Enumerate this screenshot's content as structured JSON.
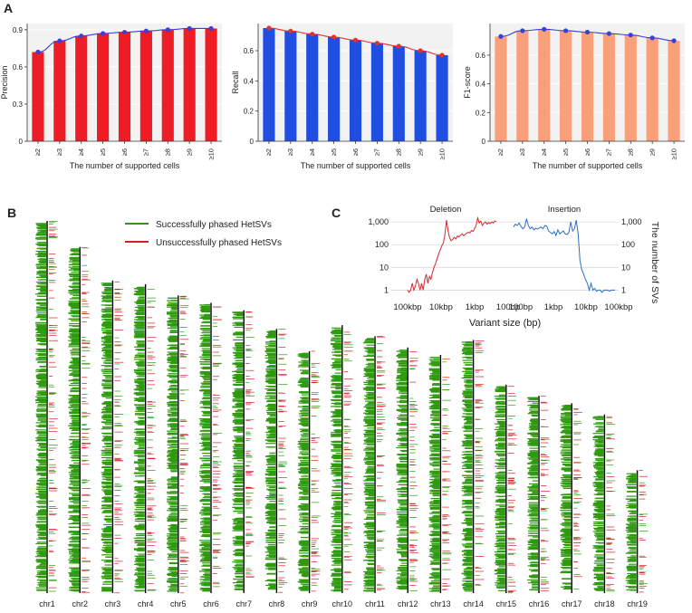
{
  "panels": {
    "A": "A",
    "B": "B",
    "C": "C"
  },
  "chart_data": [
    {
      "panel": "A",
      "type": "bar",
      "ylabel": "Precision",
      "xlabel": "The number of supported cells",
      "categories": [
        "≥2",
        "≥3",
        "≥4",
        "≥5",
        "≥6",
        "≥7",
        "≥8",
        "≥9",
        "≥10"
      ],
      "values": [
        0.72,
        0.81,
        0.85,
        0.87,
        0.88,
        0.89,
        0.9,
        0.91,
        0.91
      ],
      "ylim": [
        0,
        0.95
      ],
      "yticks": [
        0,
        0.3,
        0.6,
        0.9
      ],
      "ytick_labels": [
        "0",
        "0.3",
        "0.6",
        "0.9"
      ],
      "bar_color": "#ee1c25",
      "line_color": "#3a3fd6",
      "point_color": "#3a3fd6"
    },
    {
      "panel": "A",
      "type": "bar",
      "ylabel": "Recall",
      "xlabel": "The number of supported cells",
      "categories": [
        "≥2",
        "≥3",
        "≥4",
        "≥5",
        "≥6",
        "≥7",
        "≥8",
        "≥9",
        "≥10"
      ],
      "values": [
        0.75,
        0.73,
        0.71,
        0.69,
        0.67,
        0.65,
        0.63,
        0.6,
        0.57
      ],
      "ylim": [
        0,
        0.78
      ],
      "yticks": [
        0,
        0.2,
        0.4,
        0.6
      ],
      "ytick_labels": [
        "0",
        "0.2",
        "0.4",
        "0.6"
      ],
      "bar_color": "#1f4ee0",
      "line_color": "#e8302a",
      "point_color": "#e8302a"
    },
    {
      "panel": "A",
      "type": "bar",
      "ylabel": "F1-score",
      "xlabel": "The number of supported cells",
      "categories": [
        "≥2",
        "≥3",
        "≥4",
        "≥5",
        "≥6",
        "≥7",
        "≥8",
        "≥9",
        "≥10"
      ],
      "values": [
        0.73,
        0.77,
        0.78,
        0.77,
        0.76,
        0.75,
        0.74,
        0.72,
        0.7
      ],
      "ylim": [
        0,
        0.82
      ],
      "yticks": [
        0,
        0.2,
        0.4,
        0.6
      ],
      "ytick_labels": [
        "0",
        "0.2",
        "0.4",
        "0.6"
      ],
      "bar_color": "#f9a07a",
      "line_color": "#3a3fd6",
      "point_color": "#3a3fd6"
    },
    {
      "panel": "C",
      "type": "line",
      "title_left": "Deletion",
      "title_right": "Insertion",
      "xlabel": "Variant size (bp)",
      "ylabel": "The number of SVs",
      "yscale": "log",
      "ylim": [
        0.5,
        1600
      ],
      "yticks": [
        1,
        10,
        100,
        1000
      ],
      "ytick_labels": [
        "1",
        "10",
        "100",
        "1,000"
      ],
      "deletion_xtick_labels": [
        "100kbp",
        "10kbp",
        "1kbp",
        "100bp"
      ],
      "insertion_xtick_labels": [
        "100bp",
        "1kbp",
        "10kbp",
        "100kbp"
      ],
      "deletion_color": "#d6282c",
      "insertion_color": "#2f6fc0",
      "deletion_series": [
        1,
        0.8,
        1,
        2,
        1,
        1.5,
        3,
        2,
        1,
        2,
        1,
        3,
        5,
        2,
        4,
        3,
        6,
        10,
        15,
        25,
        40,
        60,
        90,
        120,
        300,
        1200,
        400,
        200,
        150,
        170,
        210,
        180,
        240,
        220,
        260,
        300,
        250,
        280,
        320,
        350,
        330,
        420,
        380,
        500,
        700,
        1500,
        900,
        1100,
        700,
        900,
        1000,
        800,
        950,
        850,
        1000,
        900,
        1100,
        1050
      ],
      "insertion_series": [
        600,
        800,
        700,
        900,
        650,
        500,
        600,
        1400,
        700,
        500,
        600,
        450,
        520,
        480,
        550,
        600,
        500,
        700,
        650,
        400,
        350,
        300,
        380,
        250,
        450,
        300,
        350,
        400,
        300,
        280,
        350,
        1000,
        400,
        500,
        1200,
        300,
        20,
        8,
        5,
        3,
        2,
        1,
        2,
        1,
        1.2,
        0.9,
        1,
        1,
        0.8,
        1,
        1,
        1,
        0.9,
        1,
        1,
        1
      ]
    }
  ],
  "legend": {
    "success": "Successfully phased HetSVs",
    "fail": "Unsuccessfully phased HetSVs",
    "success_color": "#2e9a0e",
    "fail_color": "#d31f2c"
  },
  "chromosomes": [
    {
      "name": "chr1",
      "length": 1.0
    },
    {
      "name": "chr2",
      "length": 0.93
    },
    {
      "name": "chr3",
      "length": 0.84
    },
    {
      "name": "chr4",
      "length": 0.83
    },
    {
      "name": "chr5",
      "length": 0.8
    },
    {
      "name": "chr6",
      "length": 0.78
    },
    {
      "name": "chr7",
      "length": 0.76
    },
    {
      "name": "chr8",
      "length": 0.71
    },
    {
      "name": "chr9",
      "length": 0.65
    },
    {
      "name": "chr10",
      "length": 0.72
    },
    {
      "name": "chr11",
      "length": 0.69
    },
    {
      "name": "chr12",
      "length": 0.66
    },
    {
      "name": "chr13",
      "length": 0.64
    },
    {
      "name": "chr14",
      "length": 0.68
    },
    {
      "name": "chr15",
      "length": 0.56
    },
    {
      "name": "chr16",
      "length": 0.53
    },
    {
      "name": "chr17",
      "length": 0.51
    },
    {
      "name": "chr18",
      "length": 0.48
    },
    {
      "name": "chr19",
      "length": 0.33
    }
  ]
}
